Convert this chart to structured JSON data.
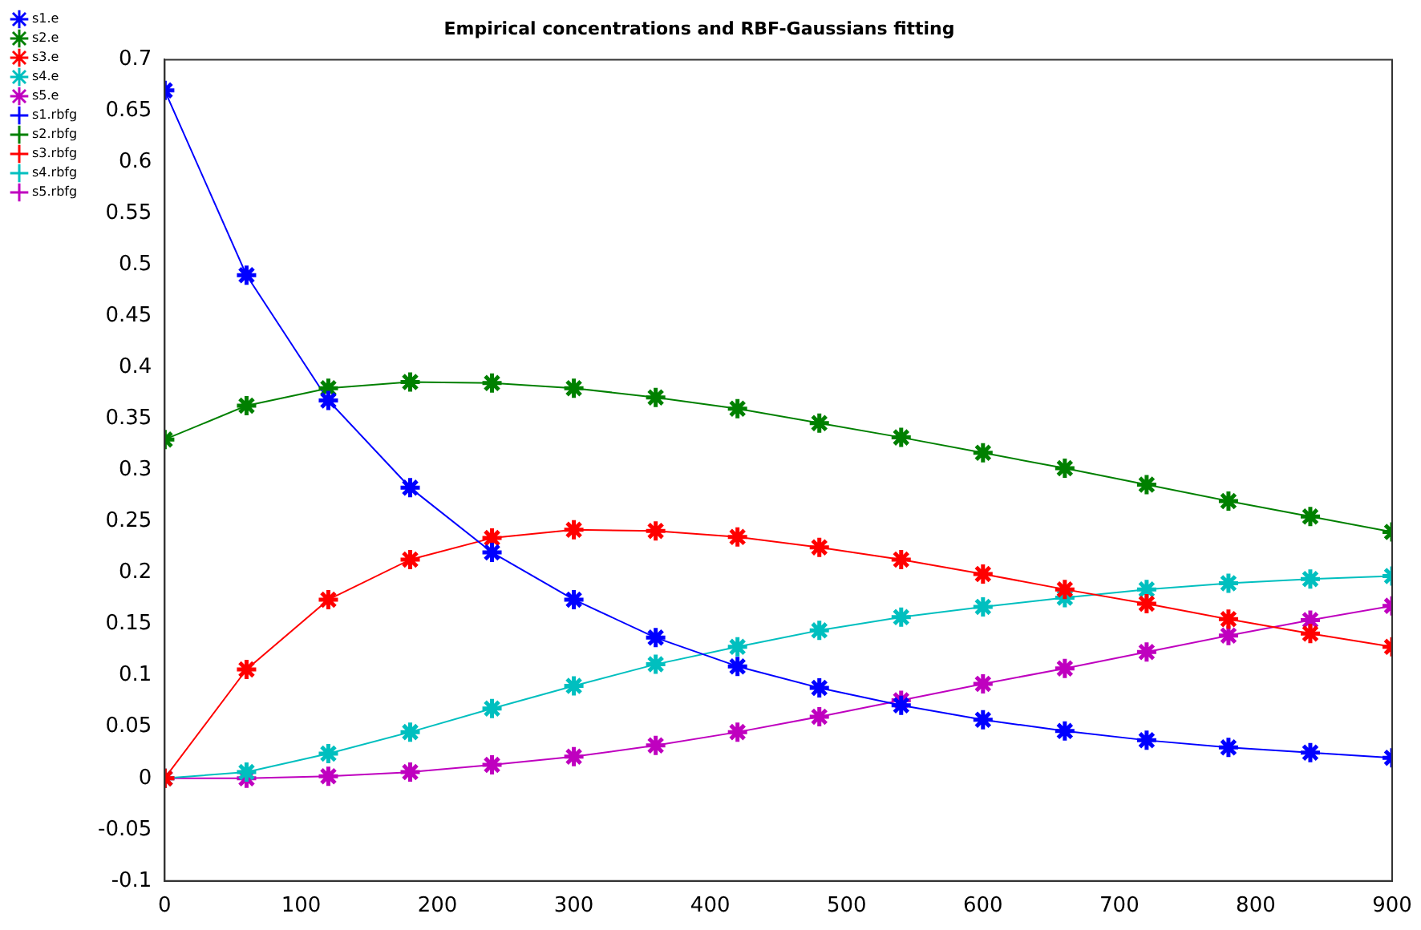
{
  "chart_data": {
    "type": "line",
    "title": "Empirical concentrations and RBF-Gaussians fitting",
    "x": [
      0,
      60,
      120,
      180,
      240,
      300,
      360,
      420,
      480,
      540,
      600,
      660,
      720,
      780,
      840,
      900
    ],
    "series": [
      {
        "name": "s1.e",
        "type": "scatter",
        "marker": "cross",
        "color": "#0000ff",
        "values": [
          0.67,
          0.49,
          0.368,
          0.283,
          0.22,
          0.174,
          0.137,
          0.109,
          0.088,
          0.071,
          0.057,
          0.046,
          0.037,
          0.03,
          0.025,
          0.02
        ]
      },
      {
        "name": "s2.e",
        "type": "scatter",
        "marker": "cross",
        "color": "#008000",
        "values": [
          0.33,
          0.363,
          0.38,
          0.386,
          0.385,
          0.38,
          0.371,
          0.36,
          0.346,
          0.332,
          0.317,
          0.302,
          0.286,
          0.27,
          0.255,
          0.24
        ]
      },
      {
        "name": "s3.e",
        "type": "scatter",
        "marker": "cross",
        "color": "#ff0000",
        "values": [
          0,
          0.106,
          0.174,
          0.213,
          0.234,
          0.242,
          0.241,
          0.235,
          0.225,
          0.213,
          0.199,
          0.184,
          0.17,
          0.155,
          0.141,
          0.128
        ]
      },
      {
        "name": "s4.e",
        "type": "scatter",
        "marker": "cross",
        "color": "#00bfbf",
        "values": [
          0,
          0.006,
          0.024,
          0.045,
          0.068,
          0.09,
          0.111,
          0.128,
          0.144,
          0.157,
          0.167,
          0.176,
          0.184,
          0.19,
          0.194,
          0.197
        ]
      },
      {
        "name": "s5.e",
        "type": "scatter",
        "marker": "cross",
        "color": "#bf00bf",
        "values": [
          0,
          0,
          0.002,
          0.006,
          0.013,
          0.021,
          0.032,
          0.045,
          0.06,
          0.076,
          0.092,
          0.107,
          0.123,
          0.139,
          0.154,
          0.168
        ]
      },
      {
        "name": "s1.rbfg",
        "type": "line",
        "marker": "none",
        "color": "#0000ff",
        "values": [
          0.67,
          0.49,
          0.368,
          0.283,
          0.22,
          0.174,
          0.137,
          0.109,
          0.088,
          0.071,
          0.057,
          0.046,
          0.037,
          0.03,
          0.025,
          0.02
        ]
      },
      {
        "name": "s2.rbfg",
        "type": "line",
        "marker": "none",
        "color": "#008000",
        "values": [
          0.33,
          0.363,
          0.38,
          0.386,
          0.385,
          0.38,
          0.371,
          0.36,
          0.346,
          0.332,
          0.317,
          0.302,
          0.286,
          0.27,
          0.255,
          0.24
        ]
      },
      {
        "name": "s3.rbfg",
        "type": "line",
        "marker": "none",
        "color": "#ff0000",
        "values": [
          0,
          0.106,
          0.174,
          0.213,
          0.234,
          0.242,
          0.241,
          0.235,
          0.225,
          0.213,
          0.199,
          0.184,
          0.17,
          0.155,
          0.141,
          0.128
        ]
      },
      {
        "name": "s4.rbfg",
        "type": "line",
        "marker": "none",
        "color": "#00bfbf",
        "values": [
          0,
          0.006,
          0.024,
          0.045,
          0.068,
          0.09,
          0.111,
          0.128,
          0.144,
          0.157,
          0.167,
          0.176,
          0.184,
          0.19,
          0.194,
          0.197
        ]
      },
      {
        "name": "s5.rbfg",
        "type": "line",
        "marker": "none",
        "color": "#bf00bf",
        "values": [
          0,
          0,
          0.002,
          0.006,
          0.013,
          0.021,
          0.032,
          0.045,
          0.06,
          0.076,
          0.092,
          0.107,
          0.123,
          0.139,
          0.154,
          0.168
        ]
      }
    ],
    "xlim": [
      0,
      900
    ],
    "xticks": [
      0,
      100,
      200,
      300,
      400,
      500,
      600,
      700,
      800,
      900
    ],
    "ylim": [
      -0.1,
      0.7
    ],
    "yticks": [
      -0.1,
      -0.05,
      0,
      0.05,
      0.1,
      0.15,
      0.2,
      0.25,
      0.3,
      0.35,
      0.4,
      0.45,
      0.5,
      0.55,
      0.6,
      0.65,
      0.7
    ],
    "grid": false,
    "legend": "left"
  }
}
